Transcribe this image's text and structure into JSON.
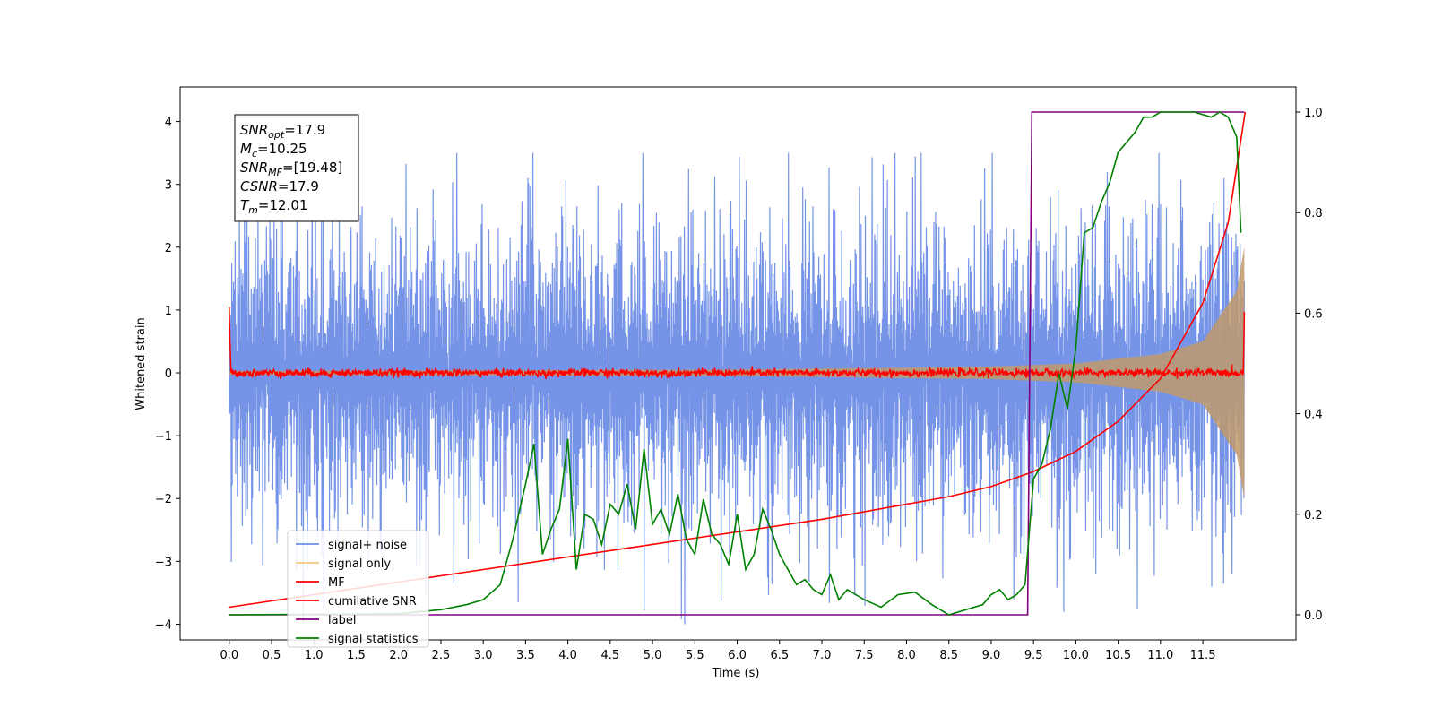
{
  "chart_data": {
    "type": "line",
    "xlabel": "Time (s)",
    "ylabel": "Whitened strain",
    "xlim": [
      -0.58,
      12.6
    ],
    "ylim": [
      -4.25,
      4.55
    ],
    "y2lim": [
      -0.05,
      1.05
    ],
    "x_ticks": [
      0.0,
      0.5,
      1.0,
      1.5,
      2.0,
      2.5,
      3.0,
      3.5,
      4.0,
      4.5,
      5.0,
      5.5,
      6.0,
      6.5,
      7.0,
      7.5,
      8.0,
      8.5,
      9.0,
      9.5,
      10.0,
      10.5,
      11.0,
      11.5
    ],
    "x_tick_labels": [
      "0.0",
      "0.5",
      "1.0",
      "1.5",
      "2.0",
      "2.5",
      "3.0",
      "3.5",
      "4.0",
      "4.5",
      "5.0",
      "5.5",
      "6.0",
      "6.5",
      "7.0",
      "7.5",
      "8.0",
      "8.5",
      "9.0",
      "9.5",
      "10.0",
      "10.5",
      "11.0",
      "11.5"
    ],
    "y_ticks": [
      -4,
      -3,
      -2,
      -1,
      0,
      1,
      2,
      3,
      4
    ],
    "y_tick_labels": [
      "−4",
      "−3",
      "−2",
      "−1",
      "0",
      "1",
      "2",
      "3",
      "4"
    ],
    "y2_ticks": [
      0.0,
      0.2,
      0.4,
      0.6,
      0.8,
      1.0
    ],
    "y2_tick_labels": [
      "0.0",
      "0.2",
      "0.4",
      "0.6",
      "0.8",
      "1.0"
    ],
    "grid": false,
    "legend_position": "lower-left",
    "series": [
      {
        "name": "signal+ noise",
        "color": "#6f8ee6",
        "axis": "left",
        "kind": "noisy band",
        "x_range": [
          0,
          11.99
        ],
        "envelope": [
          [
            0.0,
            3.3
          ],
          [
            3.0,
            3.0
          ],
          [
            6.0,
            3.1
          ],
          [
            9.0,
            3.0
          ],
          [
            11.5,
            3.2
          ],
          [
            11.99,
            3.4
          ]
        ]
      },
      {
        "name": "signal only",
        "color": "#f5c77e",
        "axis": "left",
        "kind": "chirp envelope",
        "x_range": [
          0,
          11.99
        ],
        "envelope": [
          [
            0.0,
            0.03
          ],
          [
            6.0,
            0.05
          ],
          [
            9.0,
            0.1
          ],
          [
            10.0,
            0.15
          ],
          [
            11.0,
            0.3
          ],
          [
            11.5,
            0.5
          ],
          [
            11.9,
            1.3
          ],
          [
            11.99,
            2.0
          ]
        ]
      },
      {
        "name": "MF",
        "color": "#ff0000",
        "axis": "left",
        "kind": "noisy line",
        "x_range": [
          0,
          11.99
        ],
        "points": [
          [
            0.0,
            1.0
          ],
          [
            0.02,
            0.0
          ],
          [
            11.98,
            0.0
          ],
          [
            11.99,
            1.0
          ]
        ],
        "noise_amplitude": 0.07
      },
      {
        "name": "cumilative SNR",
        "color": "#ff0000",
        "axis": "right",
        "x": [
          0.0,
          1.0,
          2.0,
          3.0,
          4.0,
          5.0,
          6.0,
          7.0,
          8.0,
          8.5,
          9.0,
          9.5,
          10.0,
          10.5,
          11.0,
          11.5,
          11.8,
          12.0
        ],
        "values": [
          0.015,
          0.04,
          0.065,
          0.09,
          0.115,
          0.14,
          0.165,
          0.19,
          0.22,
          0.235,
          0.255,
          0.285,
          0.325,
          0.385,
          0.47,
          0.62,
          0.78,
          1.0
        ]
      },
      {
        "name": "label",
        "color": "#800080",
        "axis": "right",
        "x": [
          0.0,
          9.43,
          9.48,
          11.99
        ],
        "values": [
          0.0,
          0.0,
          1.0,
          1.0
        ]
      },
      {
        "name": "signal statistics",
        "color": "#008000",
        "axis": "right",
        "x": [
          0.0,
          2.0,
          2.5,
          2.8,
          3.0,
          3.2,
          3.35,
          3.5,
          3.6,
          3.7,
          3.8,
          3.9,
          4.0,
          4.1,
          4.2,
          4.3,
          4.4,
          4.5,
          4.6,
          4.7,
          4.8,
          4.9,
          5.0,
          5.1,
          5.2,
          5.3,
          5.4,
          5.5,
          5.6,
          5.7,
          5.8,
          5.9,
          6.0,
          6.1,
          6.2,
          6.3,
          6.4,
          6.5,
          6.6,
          6.7,
          6.8,
          6.9,
          7.0,
          7.1,
          7.2,
          7.3,
          7.4,
          7.5,
          7.7,
          7.9,
          8.1,
          8.3,
          8.5,
          8.7,
          8.9,
          9.0,
          9.1,
          9.2,
          9.3,
          9.4,
          9.5,
          9.6,
          9.7,
          9.8,
          9.9,
          10.0,
          10.1,
          10.2,
          10.3,
          10.4,
          10.5,
          10.6,
          10.7,
          10.8,
          10.9,
          11.0,
          11.2,
          11.4,
          11.6,
          11.7,
          11.8,
          11.9,
          11.95
        ],
        "values": [
          0.0,
          0.002,
          0.01,
          0.02,
          0.03,
          0.06,
          0.15,
          0.26,
          0.34,
          0.12,
          0.17,
          0.21,
          0.35,
          0.09,
          0.2,
          0.19,
          0.14,
          0.22,
          0.2,
          0.26,
          0.17,
          0.33,
          0.18,
          0.21,
          0.16,
          0.24,
          0.15,
          0.12,
          0.23,
          0.16,
          0.14,
          0.1,
          0.2,
          0.09,
          0.12,
          0.21,
          0.17,
          0.12,
          0.09,
          0.06,
          0.07,
          0.05,
          0.04,
          0.08,
          0.03,
          0.05,
          0.04,
          0.03,
          0.015,
          0.04,
          0.045,
          0.02,
          0.0,
          0.01,
          0.02,
          0.04,
          0.05,
          0.03,
          0.04,
          0.06,
          0.27,
          0.3,
          0.37,
          0.48,
          0.41,
          0.53,
          0.76,
          0.77,
          0.82,
          0.86,
          0.92,
          0.94,
          0.96,
          0.99,
          0.99,
          1.0,
          1.0,
          1.0,
          0.99,
          1.0,
          0.99,
          0.95,
          0.76
        ]
      }
    ],
    "annotation": {
      "lines": [
        {
          "base": "SNR",
          "sub": "opt",
          "value": "=17.9"
        },
        {
          "base": "M",
          "sub": "c",
          "value": "=10.25"
        },
        {
          "base": "SNR",
          "sub": "MF",
          "value": "=[19.48]"
        },
        {
          "base": "CSNR",
          "sub": "",
          "value": "=17.9"
        },
        {
          "base": "T",
          "sub": "m",
          "value": "=12.01"
        }
      ]
    }
  }
}
